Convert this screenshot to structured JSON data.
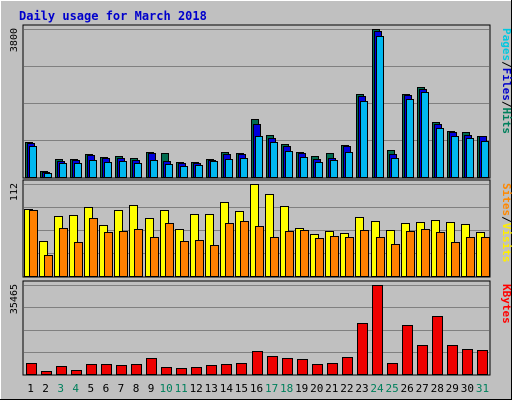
{
  "chart_data": {
    "type": "bar",
    "title": "Daily usage for March 2018",
    "categories": [
      "1",
      "2",
      "3",
      "4",
      "5",
      "6",
      "7",
      "8",
      "9",
      "10",
      "11",
      "12",
      "13",
      "14",
      "15",
      "16",
      "17",
      "18",
      "19",
      "20",
      "21",
      "22",
      "23",
      "24",
      "25",
      "26",
      "27",
      "28",
      "29",
      "30",
      "31"
    ],
    "weekend_days": [
      "3",
      "4",
      "10",
      "11",
      "17",
      "18",
      "24",
      "25",
      "31"
    ],
    "panels": [
      {
        "id": "hits",
        "ymax": 3800,
        "ymax_label": "3800",
        "legend": [
          {
            "text": "Pages",
            "color": "#00c8e0"
          },
          {
            "text": "/",
            "color": "#000000"
          },
          {
            "text": "Files",
            "color": "#0000cc"
          },
          {
            "text": "/",
            "color": "#000000"
          },
          {
            "text": "Hits",
            "color": "#00805c"
          }
        ],
        "series": [
          {
            "name": "Hits",
            "color": "#006c50",
            "values": [
              900,
              150,
              450,
              470,
              590,
              520,
              530,
              480,
              650,
              610,
              390,
              380,
              450,
              650,
              620,
              1500,
              1070,
              850,
              640,
              530,
              620,
              830,
              2120,
              3800,
              690,
              2130,
              2310,
              1400,
              1170,
              1150,
              1060
            ]
          },
          {
            "name": "Files",
            "color": "#0000dd",
            "values": [
              870,
              140,
              420,
              430,
              560,
              480,
              490,
              440,
              620,
              400,
              360,
              350,
              430,
              590,
              590,
              1350,
              1000,
              790,
              620,
              450,
              480,
              800,
              2080,
              3750,
              600,
              2100,
              2270,
              1370,
              1160,
              1090,
              1040
            ]
          },
          {
            "name": "Pages",
            "color": "#00b8f0",
            "values": [
              790,
              110,
              360,
              360,
              430,
              390,
              400,
              360,
              430,
              330,
              290,
              300,
              400,
              460,
              500,
              1050,
              900,
              680,
              520,
              380,
              440,
              650,
              1960,
              3620,
              480,
              1990,
              2170,
              1260,
              1040,
              1010,
              930
            ]
          }
        ]
      },
      {
        "id": "visits",
        "ymax": 112,
        "ymax_label": "112",
        "legend": [
          {
            "text": "Sites",
            "color": "#ff8800"
          },
          {
            "text": "/",
            "color": "#000000"
          },
          {
            "text": "Visits",
            "color": "#ffee00"
          }
        ],
        "series": [
          {
            "name": "Visits",
            "color": "#ffff00",
            "values": [
              81,
              43,
              73,
              74,
              84,
              62,
              80,
              86,
              71,
              80,
              57,
              76,
              76,
              90,
              79,
              112,
              100,
              85,
              59,
              51,
              55,
              52,
              72,
              67,
              56,
              65,
              66,
              68,
              66,
              63,
              54
            ]
          },
          {
            "name": "Sites",
            "color": "#ff8000",
            "values": [
              80,
              25,
              58,
              42,
              71,
              54,
              55,
              57,
              48,
              64,
              43,
              44,
              38,
              64,
              67,
              61,
              47,
              55,
              56,
              46,
              49,
              48,
              56,
              48,
              39,
              55,
              57,
              54,
              42,
              48,
              48
            ]
          }
        ]
      },
      {
        "id": "kbytes",
        "ymax": 35465,
        "ymax_label": "35465",
        "legend": [
          {
            "text": "KBytes",
            "color": "#ff0000"
          }
        ],
        "series": [
          {
            "name": "KBytes",
            "color": "#ee0000",
            "values": [
              4500,
              1000,
              3300,
              1700,
              4000,
              3800,
              3700,
              3800,
              6400,
              2900,
              2200,
              2800,
              3700,
              4000,
              4200,
              9000,
              7000,
              6300,
              5800,
              4000,
              4500,
              6800,
              20500,
              35465,
              4400,
              19500,
              11500,
              23000,
              11500,
              10000,
              9500
            ]
          }
        ]
      }
    ]
  }
}
